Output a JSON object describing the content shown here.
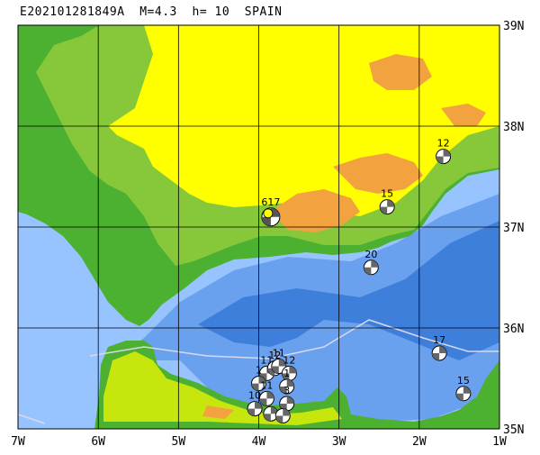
{
  "title": "E202101281849A  M=4.3  h= 10  SPAIN",
  "axes": {
    "lon_labels": [
      "7W",
      "6W",
      "5W",
      "4W",
      "3W",
      "2W",
      "1W"
    ],
    "lat_labels": [
      "39N",
      "38N",
      "37N",
      "36N",
      "35N"
    ],
    "lon_range": [
      -7,
      -1
    ],
    "lat_range": [
      35,
      39
    ]
  },
  "colors": {
    "deep_sea": "#3f7fdc",
    "mid_sea": "#6aa1ee",
    "shelf_sea": "#97c4ff",
    "lowland": "#4cb030",
    "low_green": "#86c83a",
    "yellow_green": "#c7e60e",
    "highland": "#ffff00",
    "mountain": "#f2a23e",
    "grid": "#000000"
  },
  "events": [
    {
      "label": "12",
      "lon": -1.7,
      "lat": 37.7,
      "type": "mech"
    },
    {
      "label": "15",
      "lon": -2.4,
      "lat": 37.2,
      "type": "mech"
    },
    {
      "label": "617",
      "lon": -3.85,
      "lat": 37.1,
      "type": "main"
    },
    {
      "label": "20",
      "lon": -2.6,
      "lat": 36.6,
      "type": "mech"
    },
    {
      "label": "17",
      "lon": -1.75,
      "lat": 35.75,
      "type": "mech"
    },
    {
      "label": "15",
      "lon": -1.45,
      "lat": 35.35,
      "type": "mech"
    },
    {
      "label": "11",
      "lon": -3.9,
      "lat": 35.55,
      "type": "mech"
    },
    {
      "label": "12",
      "lon": -3.8,
      "lat": 35.6,
      "type": "mech"
    },
    {
      "label": "11",
      "lon": -3.75,
      "lat": 35.62,
      "type": "mech"
    },
    {
      "label": "12",
      "lon": -3.62,
      "lat": 35.55,
      "type": "mech"
    },
    {
      "label": "1",
      "lon": -4.0,
      "lat": 35.45,
      "type": "mech"
    },
    {
      "label": "1",
      "lon": -3.65,
      "lat": 35.42,
      "type": "mech"
    },
    {
      "label": "11",
      "lon": -3.9,
      "lat": 35.3,
      "type": "mech"
    },
    {
      "label": "10",
      "lon": -4.05,
      "lat": 35.2,
      "type": "mech"
    },
    {
      "label": "3",
      "lon": -3.65,
      "lat": 35.25,
      "type": "mech"
    },
    {
      "label": "",
      "lon": -3.85,
      "lat": 35.15,
      "type": "mech"
    },
    {
      "label": "",
      "lon": -3.7,
      "lat": 35.13,
      "type": "mech"
    }
  ]
}
